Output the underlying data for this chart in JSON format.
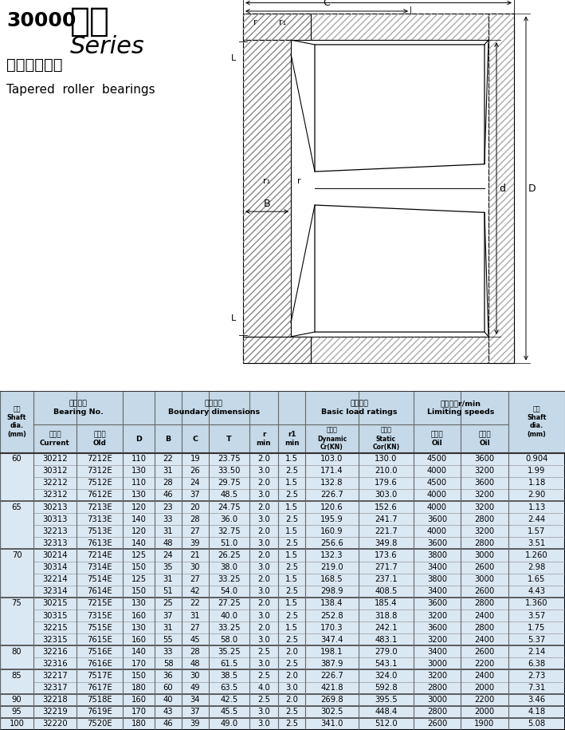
{
  "title_num": "30000",
  "title_cn": "系列",
  "title_en": "Series",
  "subtitle_cn": "圆锥滚子轴承",
  "subtitle_en": "Tapered  roller  bearings",
  "header_bg": "#c5d9e8",
  "row_bg": "#dae8f4",
  "rows": [
    {
      "shaft": "60",
      "current": "30212",
      "old": "7212E",
      "D": "110",
      "B": "22",
      "C": "19",
      "T": "23.75",
      "r": "2.0",
      "r1": "1.5",
      "dynamic": "103.0",
      "static_c": "130.0",
      "oil": "4500",
      "grease": "3600",
      "shaft2": "0.904",
      "group_start": true
    },
    {
      "shaft": "",
      "current": "30312",
      "old": "7312E",
      "D": "130",
      "B": "31",
      "C": "26",
      "T": "33.50",
      "r": "3.0",
      "r1": "2.5",
      "dynamic": "171.4",
      "static_c": "210.0",
      "oil": "4000",
      "grease": "3200",
      "shaft2": "1.99",
      "group_start": false
    },
    {
      "shaft": "",
      "current": "32212",
      "old": "7512E",
      "D": "110",
      "B": "28",
      "C": "24",
      "T": "29.75",
      "r": "2.0",
      "r1": "1.5",
      "dynamic": "132.8",
      "static_c": "179.6",
      "oil": "4500",
      "grease": "3600",
      "shaft2": "1.18",
      "group_start": false
    },
    {
      "shaft": "",
      "current": "32312",
      "old": "7612E",
      "D": "130",
      "B": "46",
      "C": "37",
      "T": "48.5",
      "r": "3.0",
      "r1": "2.5",
      "dynamic": "226.7",
      "static_c": "303.0",
      "oil": "4000",
      "grease": "3200",
      "shaft2": "2.90",
      "group_start": false
    },
    {
      "shaft": "65",
      "current": "30213",
      "old": "7213E",
      "D": "120",
      "B": "23",
      "C": "20",
      "T": "24.75",
      "r": "2.0",
      "r1": "1.5",
      "dynamic": "120.6",
      "static_c": "152.6",
      "oil": "4000",
      "grease": "3200",
      "shaft2": "1.13",
      "group_start": true
    },
    {
      "shaft": "",
      "current": "30313",
      "old": "7313E",
      "D": "140",
      "B": "33",
      "C": "28",
      "T": "36.0",
      "r": "3.0",
      "r1": "2.5",
      "dynamic": "195.9",
      "static_c": "241.7",
      "oil": "3600",
      "grease": "2800",
      "shaft2": "2.44",
      "group_start": false
    },
    {
      "shaft": "",
      "current": "32213",
      "old": "7513E",
      "D": "120",
      "B": "31",
      "C": "27",
      "T": "32.75",
      "r": "2.0",
      "r1": "1.5",
      "dynamic": "160.9",
      "static_c": "221.7",
      "oil": "4000",
      "grease": "3200",
      "shaft2": "1.57",
      "group_start": false
    },
    {
      "shaft": "",
      "current": "32313",
      "old": "7613E",
      "D": "140",
      "B": "48",
      "C": "39",
      "T": "51.0",
      "r": "3.0",
      "r1": "2.5",
      "dynamic": "256.6",
      "static_c": "349.8",
      "oil": "3600",
      "grease": "2800",
      "shaft2": "3.51",
      "group_start": false
    },
    {
      "shaft": "70",
      "current": "30214",
      "old": "7214E",
      "D": "125",
      "B": "24",
      "C": "21",
      "T": "26.25",
      "r": "2.0",
      "r1": "1.5",
      "dynamic": "132.3",
      "static_c": "173.6",
      "oil": "3800",
      "grease": "3000",
      "shaft2": "1.260",
      "group_start": true
    },
    {
      "shaft": "",
      "current": "30314",
      "old": "7314E",
      "D": "150",
      "B": "35",
      "C": "30",
      "T": "38.0",
      "r": "3.0",
      "r1": "2.5",
      "dynamic": "219.0",
      "static_c": "271.7",
      "oil": "3400",
      "grease": "2600",
      "shaft2": "2.98",
      "group_start": false
    },
    {
      "shaft": "",
      "current": "32214",
      "old": "7514E",
      "D": "125",
      "B": "31",
      "C": "27",
      "T": "33.25",
      "r": "2.0",
      "r1": "1.5",
      "dynamic": "168.5",
      "static_c": "237.1",
      "oil": "3800",
      "grease": "3000",
      "shaft2": "1.65",
      "group_start": false
    },
    {
      "shaft": "",
      "current": "32314",
      "old": "7614E",
      "D": "150",
      "B": "51",
      "C": "42",
      "T": "54.0",
      "r": "3.0",
      "r1": "2.5",
      "dynamic": "298.9",
      "static_c": "408.5",
      "oil": "3400",
      "grease": "2600",
      "shaft2": "4.43",
      "group_start": false
    },
    {
      "shaft": "75",
      "current": "30215",
      "old": "7215E",
      "D": "130",
      "B": "25",
      "C": "22",
      "T": "27.25",
      "r": "2.0",
      "r1": "1.5",
      "dynamic": "138.4",
      "static_c": "185.4",
      "oil": "3600",
      "grease": "2800",
      "shaft2": "1.360",
      "group_start": true
    },
    {
      "shaft": "",
      "current": "30315",
      "old": "7315E",
      "D": "160",
      "B": "37",
      "C": "31",
      "T": "40.0",
      "r": "3.0",
      "r1": "2.5",
      "dynamic": "252.8",
      "static_c": "318.8",
      "oil": "3200",
      "grease": "2400",
      "shaft2": "3.57",
      "group_start": false
    },
    {
      "shaft": "",
      "current": "32215",
      "old": "7515E",
      "D": "130",
      "B": "31",
      "C": "27",
      "T": "33.25",
      "r": "2.0",
      "r1": "1.5",
      "dynamic": "170.3",
      "static_c": "242.1",
      "oil": "3600",
      "grease": "2800",
      "shaft2": "1.75",
      "group_start": false
    },
    {
      "shaft": "",
      "current": "32315",
      "old": "7615E",
      "D": "160",
      "B": "55",
      "C": "45",
      "T": "58.0",
      "r": "3.0",
      "r1": "2.5",
      "dynamic": "347.4",
      "static_c": "483.1",
      "oil": "3200",
      "grease": "2400",
      "shaft2": "5.37",
      "group_start": false
    },
    {
      "shaft": "80",
      "current": "32216",
      "old": "7516E",
      "D": "140",
      "B": "33",
      "C": "28",
      "T": "35.25",
      "r": "2.5",
      "r1": "2.0",
      "dynamic": "198.1",
      "static_c": "279.0",
      "oil": "3400",
      "grease": "2600",
      "shaft2": "2.14",
      "group_start": true
    },
    {
      "shaft": "",
      "current": "32316",
      "old": "7616E",
      "D": "170",
      "B": "58",
      "C": "48",
      "T": "61.5",
      "r": "3.0",
      "r1": "2.5",
      "dynamic": "387.9",
      "static_c": "543.1",
      "oil": "3000",
      "grease": "2200",
      "shaft2": "6.38",
      "group_start": false
    },
    {
      "shaft": "85",
      "current": "32217",
      "old": "7517E",
      "D": "150",
      "B": "36",
      "C": "30",
      "T": "38.5",
      "r": "2.5",
      "r1": "2.0",
      "dynamic": "226.7",
      "static_c": "324.0",
      "oil": "3200",
      "grease": "2400",
      "shaft2": "2.73",
      "group_start": true
    },
    {
      "shaft": "",
      "current": "32317",
      "old": "7617E",
      "D": "180",
      "B": "60",
      "C": "49",
      "T": "63.5",
      "r": "4.0",
      "r1": "3.0",
      "dynamic": "421.8",
      "static_c": "592.8",
      "oil": "2800",
      "grease": "2000",
      "shaft2": "7.31",
      "group_start": false
    },
    {
      "shaft": "90",
      "current": "32218",
      "old": "7518E",
      "D": "160",
      "B": "40",
      "C": "34",
      "T": "42.5",
      "r": "2.5",
      "r1": "2.0",
      "dynamic": "269.8",
      "static_c": "395.5",
      "oil": "3000",
      "grease": "2200",
      "shaft2": "3.46",
      "group_start": true
    },
    {
      "shaft": "95",
      "current": "32219",
      "old": "7619E",
      "D": "170",
      "B": "43",
      "C": "37",
      "T": "45.5",
      "r": "3.0",
      "r1": "2.5",
      "dynamic": "302.5",
      "static_c": "448.4",
      "oil": "2800",
      "grease": "2000",
      "shaft2": "4.18",
      "group_start": true
    },
    {
      "shaft": "100",
      "current": "32220",
      "old": "7520E",
      "D": "180",
      "B": "46",
      "C": "39",
      "T": "49.0",
      "r": "3.0",
      "r1": "2.5",
      "dynamic": "341.0",
      "static_c": "512.0",
      "oil": "2600",
      "grease": "1900",
      "shaft2": "5.08",
      "group_start": true
    }
  ]
}
